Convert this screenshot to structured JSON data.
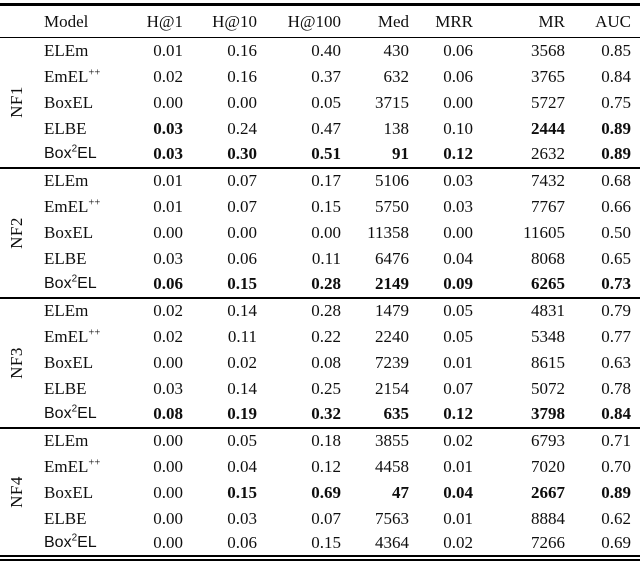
{
  "page": {
    "background": "#ffffff",
    "text_color": "#0e0e0e",
    "rule_color": "#000000"
  },
  "table": {
    "columns": [
      {
        "key": "model",
        "label": "Model",
        "align": "left"
      },
      {
        "key": "h1",
        "label": "H@1",
        "align": "right"
      },
      {
        "key": "h10",
        "label": "H@10",
        "align": "right"
      },
      {
        "key": "h100",
        "label": "H@100",
        "align": "right"
      },
      {
        "key": "med",
        "label": "Med",
        "align": "right"
      },
      {
        "key": "mrr",
        "label": "MRR",
        "align": "right"
      },
      {
        "key": "mr",
        "label": "MR",
        "align": "right"
      },
      {
        "key": "auc",
        "label": "AUC",
        "align": "right"
      }
    ],
    "groups": [
      {
        "label": "NF1",
        "rows": [
          {
            "model": {
              "pre": "ELEm",
              "sup": "",
              "post": ""
            },
            "values": [
              "0.01",
              "0.16",
              "0.40",
              "430",
              "0.06",
              "3568",
              "0.85"
            ],
            "bold": [
              0,
              0,
              0,
              0,
              0,
              0,
              0
            ]
          },
          {
            "model": {
              "pre": "EmEL",
              "sup": "++",
              "post": ""
            },
            "values": [
              "0.02",
              "0.16",
              "0.37",
              "632",
              "0.06",
              "3765",
              "0.84"
            ],
            "bold": [
              0,
              0,
              0,
              0,
              0,
              0,
              0
            ]
          },
          {
            "model": {
              "pre": "BoxEL",
              "sup": "",
              "post": ""
            },
            "values": [
              "0.00",
              "0.00",
              "0.05",
              "3715",
              "0.00",
              "5727",
              "0.75"
            ],
            "bold": [
              0,
              0,
              0,
              0,
              0,
              0,
              0
            ]
          },
          {
            "model": {
              "pre": "ELBE",
              "sup": "",
              "post": ""
            },
            "values": [
              "0.03",
              "0.24",
              "0.47",
              "138",
              "0.10",
              "2444",
              "0.89"
            ],
            "bold": [
              1,
              0,
              0,
              0,
              0,
              1,
              1
            ]
          },
          {
            "model": {
              "pre": "Box",
              "sup": "2",
              "post": "EL",
              "font": "sans"
            },
            "values": [
              "0.03",
              "0.30",
              "0.51",
              "91",
              "0.12",
              "2632",
              "0.89"
            ],
            "bold": [
              1,
              1,
              1,
              1,
              1,
              0,
              1
            ]
          }
        ]
      },
      {
        "label": "NF2",
        "rows": [
          {
            "model": {
              "pre": "ELEm",
              "sup": "",
              "post": ""
            },
            "values": [
              "0.01",
              "0.07",
              "0.17",
              "5106",
              "0.03",
              "7432",
              "0.68"
            ],
            "bold": [
              0,
              0,
              0,
              0,
              0,
              0,
              0
            ]
          },
          {
            "model": {
              "pre": "EmEL",
              "sup": "++",
              "post": ""
            },
            "values": [
              "0.01",
              "0.07",
              "0.15",
              "5750",
              "0.03",
              "7767",
              "0.66"
            ],
            "bold": [
              0,
              0,
              0,
              0,
              0,
              0,
              0
            ]
          },
          {
            "model": {
              "pre": "BoxEL",
              "sup": "",
              "post": ""
            },
            "values": [
              "0.00",
              "0.00",
              "0.00",
              "11358",
              "0.00",
              "11605",
              "0.50"
            ],
            "bold": [
              0,
              0,
              0,
              0,
              0,
              0,
              0
            ]
          },
          {
            "model": {
              "pre": "ELBE",
              "sup": "",
              "post": ""
            },
            "values": [
              "0.03",
              "0.06",
              "0.11",
              "6476",
              "0.04",
              "8068",
              "0.65"
            ],
            "bold": [
              0,
              0,
              0,
              0,
              0,
              0,
              0
            ]
          },
          {
            "model": {
              "pre": "Box",
              "sup": "2",
              "post": "EL",
              "font": "sans"
            },
            "values": [
              "0.06",
              "0.15",
              "0.28",
              "2149",
              "0.09",
              "6265",
              "0.73"
            ],
            "bold": [
              1,
              1,
              1,
              1,
              1,
              1,
              1
            ]
          }
        ]
      },
      {
        "label": "NF3",
        "rows": [
          {
            "model": {
              "pre": "ELEm",
              "sup": "",
              "post": ""
            },
            "values": [
              "0.02",
              "0.14",
              "0.28",
              "1479",
              "0.05",
              "4831",
              "0.79"
            ],
            "bold": [
              0,
              0,
              0,
              0,
              0,
              0,
              0
            ]
          },
          {
            "model": {
              "pre": "EmEL",
              "sup": "++",
              "post": ""
            },
            "values": [
              "0.02",
              "0.11",
              "0.22",
              "2240",
              "0.05",
              "5348",
              "0.77"
            ],
            "bold": [
              0,
              0,
              0,
              0,
              0,
              0,
              0
            ]
          },
          {
            "model": {
              "pre": "BoxEL",
              "sup": "",
              "post": ""
            },
            "values": [
              "0.00",
              "0.02",
              "0.08",
              "7239",
              "0.01",
              "8615",
              "0.63"
            ],
            "bold": [
              0,
              0,
              0,
              0,
              0,
              0,
              0
            ]
          },
          {
            "model": {
              "pre": "ELBE",
              "sup": "",
              "post": ""
            },
            "values": [
              "0.03",
              "0.14",
              "0.25",
              "2154",
              "0.07",
              "5072",
              "0.78"
            ],
            "bold": [
              0,
              0,
              0,
              0,
              0,
              0,
              0
            ]
          },
          {
            "model": {
              "pre": "Box",
              "sup": "2",
              "post": "EL",
              "font": "sans"
            },
            "values": [
              "0.08",
              "0.19",
              "0.32",
              "635",
              "0.12",
              "3798",
              "0.84"
            ],
            "bold": [
              1,
              1,
              1,
              1,
              1,
              1,
              1
            ]
          }
        ]
      },
      {
        "label": "NF4",
        "rows": [
          {
            "model": {
              "pre": "ELEm",
              "sup": "",
              "post": ""
            },
            "values": [
              "0.00",
              "0.05",
              "0.18",
              "3855",
              "0.02",
              "6793",
              "0.71"
            ],
            "bold": [
              0,
              0,
              0,
              0,
              0,
              0,
              0
            ]
          },
          {
            "model": {
              "pre": "EmEL",
              "sup": "++",
              "post": ""
            },
            "values": [
              "0.00",
              "0.04",
              "0.12",
              "4458",
              "0.01",
              "7020",
              "0.70"
            ],
            "bold": [
              0,
              0,
              0,
              0,
              0,
              0,
              0
            ]
          },
          {
            "model": {
              "pre": "BoxEL",
              "sup": "",
              "post": ""
            },
            "values": [
              "0.00",
              "0.15",
              "0.69",
              "47",
              "0.04",
              "2667",
              "0.89"
            ],
            "bold": [
              0,
              1,
              1,
              1,
              1,
              1,
              1
            ]
          },
          {
            "model": {
              "pre": "ELBE",
              "sup": "",
              "post": ""
            },
            "values": [
              "0.00",
              "0.03",
              "0.07",
              "7563",
              "0.01",
              "8884",
              "0.62"
            ],
            "bold": [
              0,
              0,
              0,
              0,
              0,
              0,
              0
            ]
          },
          {
            "model": {
              "pre": "Box",
              "sup": "2",
              "post": "EL",
              "font": "sans"
            },
            "values": [
              "0.00",
              "0.06",
              "0.15",
              "4364",
              "0.02",
              "7266",
              "0.69"
            ],
            "bold": [
              0,
              0,
              0,
              0,
              0,
              0,
              0
            ]
          }
        ]
      }
    ]
  }
}
